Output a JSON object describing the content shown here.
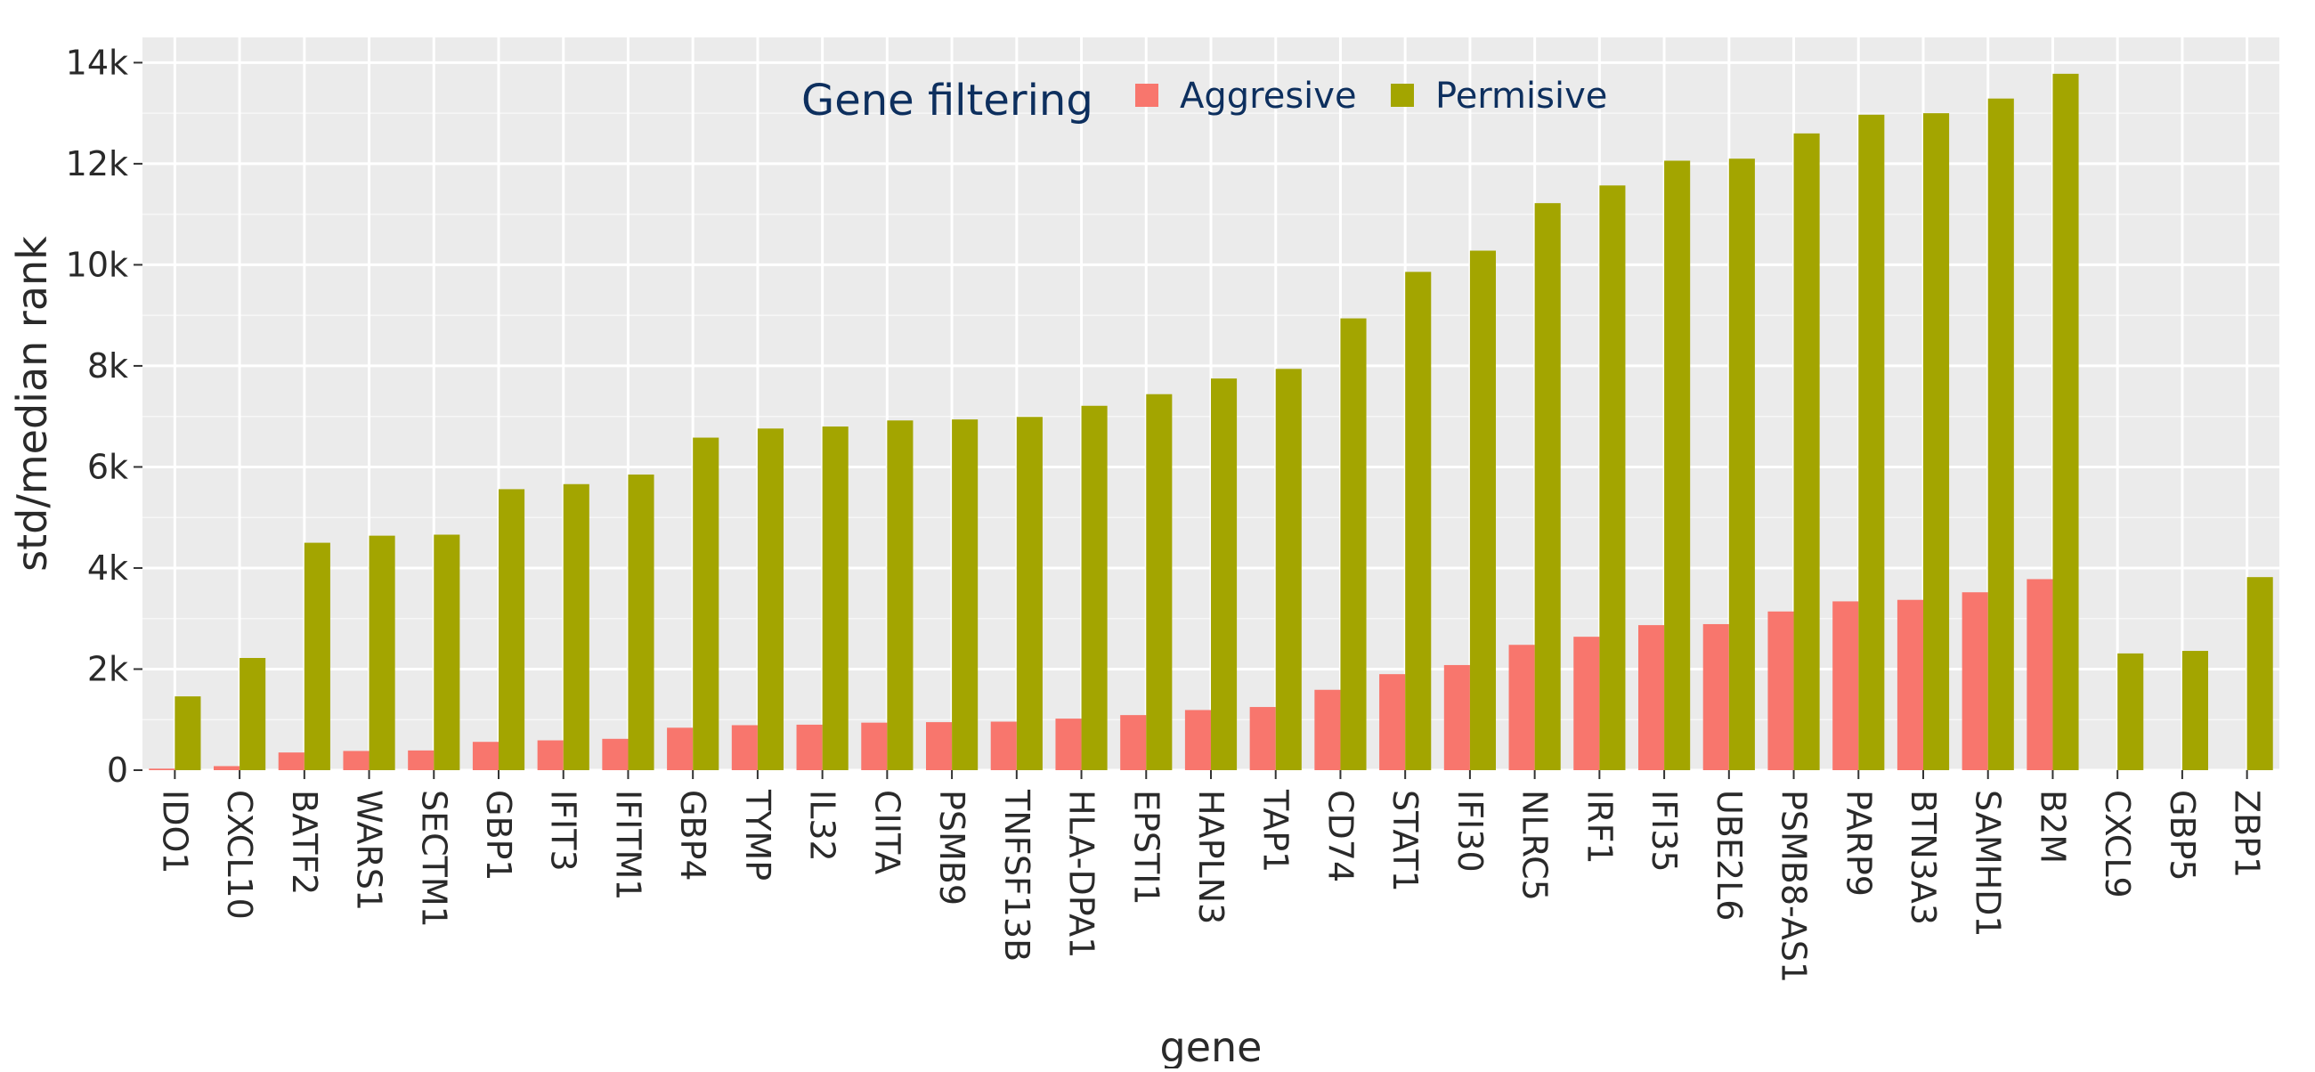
{
  "chart_data": {
    "type": "bar",
    "xlabel": "gene",
    "ylabel": "std/median rank",
    "ylim": [
      0,
      14500
    ],
    "yticks": [
      0,
      2000,
      4000,
      6000,
      8000,
      10000,
      12000,
      14000
    ],
    "ytick_labels": [
      "0",
      "2k",
      "4k",
      "6k",
      "8k",
      "10k",
      "12k",
      "14k"
    ],
    "grid": true,
    "legend": {
      "title": "Gene filtering",
      "position": "top-center"
    },
    "categories": [
      "IDO1",
      "CXCL10",
      "BATF2",
      "WARS1",
      "SECTM1",
      "GBP1",
      "IFIT3",
      "IFITM1",
      "GBP4",
      "TYMP",
      "IL32",
      "CIITA",
      "PSMB9",
      "TNFSF13B",
      "HLA-DPA1",
      "EPSTI1",
      "HAPLN3",
      "TAP1",
      "CD74",
      "STAT1",
      "IFI30",
      "NLRC5",
      "IRF1",
      "IFI35",
      "UBE2L6",
      "PSMB8-AS1",
      "PARP9",
      "BTN3A3",
      "SAMHD1",
      "B2M",
      "CXCL9",
      "GBP5",
      "ZBP1"
    ],
    "series": [
      {
        "name": "Aggresive",
        "color": "#f8766d",
        "values": [
          30,
          80,
          350,
          380,
          390,
          560,
          590,
          620,
          840,
          890,
          900,
          940,
          950,
          960,
          1020,
          1090,
          1190,
          1250,
          1590,
          1900,
          2080,
          2480,
          2640,
          2870,
          2890,
          3140,
          3340,
          3370,
          3520,
          3780,
          null,
          null,
          null
        ]
      },
      {
        "name": "Permisive",
        "color": "#a3a500",
        "values": [
          1460,
          2220,
          4500,
          4640,
          4660,
          5560,
          5660,
          5850,
          6580,
          6760,
          6800,
          6920,
          6940,
          6990,
          7210,
          7440,
          7750,
          7940,
          8940,
          9860,
          10280,
          11220,
          11570,
          12060,
          12100,
          12600,
          12970,
          13000,
          13290,
          13780,
          2310,
          2360,
          3820
        ]
      }
    ]
  }
}
